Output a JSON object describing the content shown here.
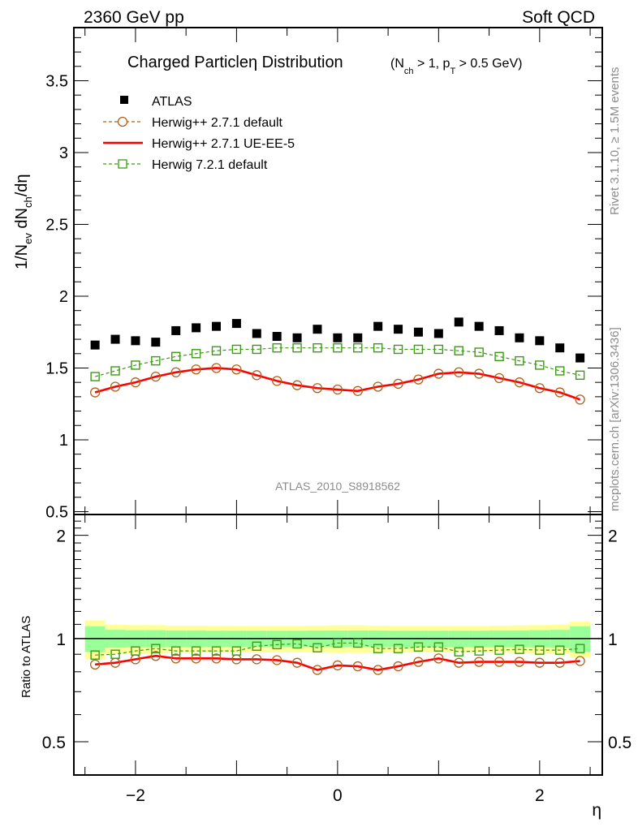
{
  "header": {
    "left": "2360 GeV pp",
    "right": "Soft QCD"
  },
  "side_labels": {
    "rivet": "Rivet 3.1.10, ≥ 1.5M events",
    "mcplots": "mcplots.cern.ch [arXiv:1306.3436]"
  },
  "chart_data": [
    {
      "type": "scatter",
      "panel": "main",
      "title": "Charged Particleη Distribution",
      "title_cuts": "(N_ch > 1, p_T > 0.5 GeV)",
      "title_cuts_parts": {
        "open": "(N",
        "sub1": "ch",
        "mid": " > 1, p",
        "sub2": "T",
        "close": " > 0.5 GeV)"
      },
      "ylabel": "1/N_ev dN_ch/dη",
      "ylabel_parts": {
        "a": "1/N",
        "sub1": "ev",
        "b": " dN",
        "sub2": "ch",
        "c": "/dη"
      },
      "xlabel": "η",
      "xlim": [
        -2.61,
        2.62
      ],
      "ylim": [
        0.48,
        3.87
      ],
      "yticks": [
        0.5,
        1,
        1.5,
        2,
        2.5,
        3,
        3.5
      ],
      "ytick_labels": [
        "0.5",
        "1",
        "1.5",
        "2",
        "2.5",
        "3",
        "3.5"
      ],
      "watermark": "ATLAS_2010_S8918562",
      "legend_position": "top-left",
      "x": [
        -2.4,
        -2.2,
        -2.0,
        -1.8,
        -1.6,
        -1.4,
        -1.2,
        -1.0,
        -0.8,
        -0.6,
        -0.4,
        -0.2,
        0.0,
        0.2,
        0.4,
        0.6,
        0.8,
        1.0,
        1.2,
        1.4,
        1.6,
        1.8,
        2.0,
        2.2,
        2.4
      ],
      "series": [
        {
          "name": "ATLAS",
          "style": "marker-square-filled",
          "color": "#000000",
          "values": [
            1.66,
            1.7,
            1.69,
            1.68,
            1.76,
            1.78,
            1.79,
            1.81,
            1.74,
            1.72,
            1.71,
            1.77,
            1.71,
            1.71,
            1.79,
            1.77,
            1.75,
            1.74,
            1.82,
            1.79,
            1.76,
            1.71,
            1.69,
            1.64,
            1.57
          ]
        },
        {
          "name": "Herwig++ 2.7.1 default",
          "style": "dashed-circle-open",
          "color": "#b2611a",
          "values": [
            1.33,
            1.37,
            1.4,
            1.44,
            1.47,
            1.49,
            1.5,
            1.49,
            1.45,
            1.41,
            1.38,
            1.36,
            1.35,
            1.34,
            1.37,
            1.39,
            1.42,
            1.46,
            1.47,
            1.46,
            1.43,
            1.4,
            1.36,
            1.33,
            1.28
          ]
        },
        {
          "name": "Herwig++ 2.7.1 UE-EE-5",
          "style": "solid-line",
          "color": "#ff0000",
          "values": [
            1.33,
            1.37,
            1.4,
            1.44,
            1.47,
            1.49,
            1.5,
            1.49,
            1.45,
            1.41,
            1.38,
            1.36,
            1.35,
            1.34,
            1.37,
            1.39,
            1.42,
            1.46,
            1.47,
            1.46,
            1.43,
            1.4,
            1.36,
            1.33,
            1.28
          ]
        },
        {
          "name": "Herwig 7.2.1 default",
          "style": "dashed-square-open",
          "color": "#3d9a14",
          "values": [
            1.44,
            1.48,
            1.52,
            1.55,
            1.58,
            1.6,
            1.62,
            1.63,
            1.63,
            1.64,
            1.64,
            1.64,
            1.64,
            1.64,
            1.64,
            1.63,
            1.63,
            1.63,
            1.62,
            1.61,
            1.58,
            1.55,
            1.52,
            1.48,
            1.45
          ]
        }
      ]
    },
    {
      "type": "scatter",
      "panel": "ratio",
      "ylabel": "Ratio to ATLAS",
      "xlabel": "η",
      "yscale": "log",
      "xlim": [
        -2.61,
        2.62
      ],
      "ylim": [
        0.4,
        2.3
      ],
      "yticks": [
        0.5,
        1,
        2
      ],
      "ytick_labels": [
        "0.5",
        "1",
        "2"
      ],
      "xticks": [
        -2,
        0,
        2
      ],
      "xtick_labels": [
        "−2",
        "0",
        "2"
      ],
      "reference_line": 1.0,
      "band_inner_color": "#99ff99",
      "band_outer_color": "#ffff99",
      "band_inner": [
        0.085,
        0.06,
        0.058,
        0.058,
        0.056,
        0.056,
        0.054,
        0.054,
        0.054,
        0.054,
        0.054,
        0.055,
        0.055,
        0.055,
        0.055,
        0.054,
        0.054,
        0.054,
        0.054,
        0.054,
        0.056,
        0.056,
        0.058,
        0.06,
        0.085
      ],
      "band_outer": [
        0.13,
        0.098,
        0.095,
        0.095,
        0.09,
        0.09,
        0.088,
        0.088,
        0.088,
        0.088,
        0.088,
        0.09,
        0.092,
        0.092,
        0.09,
        0.088,
        0.088,
        0.088,
        0.088,
        0.088,
        0.09,
        0.092,
        0.095,
        0.098,
        0.12
      ],
      "x": [
        -2.4,
        -2.2,
        -2.0,
        -1.8,
        -1.6,
        -1.4,
        -1.2,
        -1.0,
        -0.8,
        -0.6,
        -0.4,
        -0.2,
        0.0,
        0.2,
        0.4,
        0.6,
        0.8,
        1.0,
        1.2,
        1.4,
        1.6,
        1.8,
        2.0,
        2.2,
        2.4
      ],
      "series": [
        {
          "name": "Herwig++ 2.7.1 default",
          "color": "#b2611a",
          "values": [
            0.84,
            0.85,
            0.87,
            0.89,
            0.875,
            0.875,
            0.875,
            0.87,
            0.87,
            0.865,
            0.85,
            0.81,
            0.835,
            0.83,
            0.81,
            0.83,
            0.855,
            0.875,
            0.85,
            0.855,
            0.855,
            0.855,
            0.85,
            0.85,
            0.86
          ]
        },
        {
          "name": "Herwig++ 2.7.1 UE-EE-5",
          "color": "#ff0000",
          "values": [
            0.84,
            0.85,
            0.87,
            0.89,
            0.875,
            0.875,
            0.875,
            0.87,
            0.87,
            0.865,
            0.85,
            0.81,
            0.835,
            0.83,
            0.81,
            0.83,
            0.855,
            0.875,
            0.85,
            0.855,
            0.855,
            0.855,
            0.85,
            0.85,
            0.86
          ]
        },
        {
          "name": "Herwig 7.2.1 default",
          "color": "#3d9a14",
          "values": [
            0.895,
            0.9,
            0.92,
            0.935,
            0.92,
            0.92,
            0.92,
            0.92,
            0.95,
            0.96,
            0.965,
            0.94,
            0.97,
            0.97,
            0.935,
            0.935,
            0.945,
            0.945,
            0.915,
            0.92,
            0.925,
            0.93,
            0.925,
            0.925,
            0.935
          ]
        }
      ]
    }
  ]
}
